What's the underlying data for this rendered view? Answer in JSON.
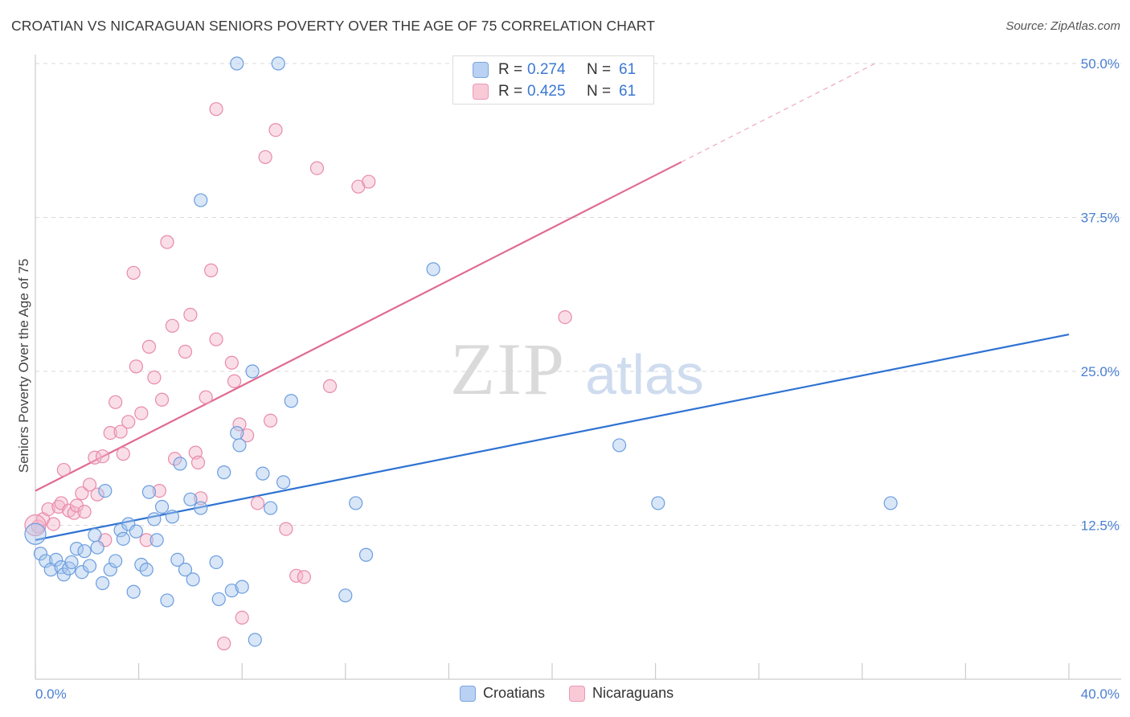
{
  "title": "CROATIAN VS NICARAGUAN SENIORS POVERTY OVER THE AGE OF 75 CORRELATION CHART",
  "source": "Source: ZipAtlas.com",
  "watermark": {
    "zip": "ZIP",
    "atlas": "atlas"
  },
  "legend": {
    "rows": [
      {
        "r_label": "R =",
        "r_value": "0.274",
        "n_label": "N =",
        "n_value": "61"
      },
      {
        "r_label": "R =",
        "r_value": "0.425",
        "n_label": "N =",
        "n_value": "61"
      }
    ]
  },
  "chart_data": {
    "type": "scatter",
    "title": "CROATIAN VS NICARAGUAN SENIORS POVERTY OVER THE AGE OF 75 CORRELATION CHART",
    "xlabel": "",
    "ylabel": "Seniors Poverty Over the Age of 75",
    "xlim": [
      0,
      40
    ],
    "ylim": [
      0,
      50
    ],
    "x_tick_labels": [
      "0.0%",
      "40.0%"
    ],
    "y_tick_labels": [
      "12.5%",
      "25.0%",
      "37.5%",
      "50.0%"
    ],
    "y_tick_values": [
      12.5,
      25.0,
      37.5,
      50.0
    ],
    "grid": true,
    "legend_position": "top-center",
    "colors": {
      "croatians": "#8bb4e8",
      "croatians_line": "#2e72d2",
      "nicaraguans": "#f0a3bd",
      "nicaraguans_line": "#e06b92"
    },
    "series": [
      {
        "name": "Croatians",
        "r": 0.274,
        "n": 61,
        "trend": {
          "x": [
            0,
            40
          ],
          "y": [
            11.3,
            28.0
          ]
        },
        "points": [
          [
            0.2,
            10.2
          ],
          [
            0.4,
            9.6
          ],
          [
            0.6,
            8.9
          ],
          [
            0.8,
            9.7
          ],
          [
            1.0,
            9.1
          ],
          [
            1.1,
            8.5
          ],
          [
            1.3,
            9.0
          ],
          [
            1.4,
            9.5
          ],
          [
            1.6,
            10.6
          ],
          [
            1.8,
            8.7
          ],
          [
            1.9,
            10.4
          ],
          [
            2.1,
            9.2
          ],
          [
            2.3,
            11.7
          ],
          [
            2.4,
            10.7
          ],
          [
            2.6,
            7.8
          ],
          [
            2.7,
            15.3
          ],
          [
            2.9,
            8.9
          ],
          [
            3.1,
            9.6
          ],
          [
            3.3,
            12.1
          ],
          [
            3.4,
            11.4
          ],
          [
            3.6,
            12.6
          ],
          [
            3.8,
            7.1
          ],
          [
            3.9,
            12.0
          ],
          [
            4.1,
            9.3
          ],
          [
            4.3,
            8.9
          ],
          [
            4.4,
            15.2
          ],
          [
            4.6,
            13.0
          ],
          [
            4.7,
            11.3
          ],
          [
            4.9,
            14.0
          ],
          [
            5.1,
            6.4
          ],
          [
            5.3,
            13.2
          ],
          [
            5.5,
            9.7
          ],
          [
            5.6,
            17.5
          ],
          [
            5.8,
            8.9
          ],
          [
            6.0,
            14.6
          ],
          [
            6.1,
            8.1
          ],
          [
            6.4,
            13.9
          ],
          [
            7.0,
            9.5
          ],
          [
            7.1,
            6.5
          ],
          [
            7.3,
            16.8
          ],
          [
            7.6,
            7.2
          ],
          [
            7.8,
            20.0
          ],
          [
            7.9,
            19.0
          ],
          [
            7.8,
            50.0
          ],
          [
            8.0,
            7.5
          ],
          [
            8.4,
            25.0
          ],
          [
            8.5,
            3.2
          ],
          [
            8.8,
            16.7
          ],
          [
            9.1,
            13.9
          ],
          [
            9.4,
            50.0
          ],
          [
            9.6,
            16.0
          ],
          [
            9.9,
            22.6
          ],
          [
            12.0,
            6.8
          ],
          [
            12.4,
            14.3
          ],
          [
            12.8,
            10.1
          ],
          [
            15.4,
            33.3
          ],
          [
            22.6,
            19.0
          ],
          [
            24.1,
            14.3
          ],
          [
            33.1,
            14.3
          ],
          [
            6.4,
            38.9
          ],
          [
            0.0,
            11.8
          ]
        ]
      },
      {
        "name": "Nicaraguans",
        "r": 0.425,
        "n": 61,
        "trend": {
          "x": [
            0,
            25.0
          ],
          "y": [
            15.3,
            42.0
          ],
          "dashed_extension": {
            "x": [
              25.0,
              40
            ],
            "y": [
              42.0,
              58.0
            ]
          }
        },
        "points": [
          [
            0.1,
            12.4
          ],
          [
            0.3,
            13.0
          ],
          [
            0.5,
            13.8
          ],
          [
            0.7,
            12.6
          ],
          [
            0.9,
            14.0
          ],
          [
            1.0,
            14.3
          ],
          [
            1.1,
            17.0
          ],
          [
            1.3,
            13.7
          ],
          [
            1.5,
            13.5
          ],
          [
            1.6,
            14.1
          ],
          [
            1.8,
            15.1
          ],
          [
            1.9,
            13.6
          ],
          [
            2.1,
            15.8
          ],
          [
            2.3,
            18.0
          ],
          [
            2.4,
            15.0
          ],
          [
            2.6,
            18.1
          ],
          [
            2.7,
            11.3
          ],
          [
            2.9,
            20.0
          ],
          [
            3.1,
            22.5
          ],
          [
            3.3,
            20.1
          ],
          [
            3.4,
            18.3
          ],
          [
            3.6,
            20.9
          ],
          [
            3.8,
            33.0
          ],
          [
            3.9,
            25.4
          ],
          [
            4.1,
            21.6
          ],
          [
            4.3,
            11.3
          ],
          [
            4.4,
            27.0
          ],
          [
            4.6,
            24.5
          ],
          [
            4.8,
            15.3
          ],
          [
            4.9,
            22.7
          ],
          [
            5.1,
            35.5
          ],
          [
            5.3,
            28.7
          ],
          [
            5.4,
            17.9
          ],
          [
            5.8,
            26.6
          ],
          [
            6.0,
            29.6
          ],
          [
            6.2,
            18.4
          ],
          [
            6.3,
            17.6
          ],
          [
            6.4,
            14.7
          ],
          [
            6.6,
            22.9
          ],
          [
            6.8,
            33.2
          ],
          [
            7.0,
            27.6
          ],
          [
            7.0,
            46.3
          ],
          [
            7.3,
            2.9
          ],
          [
            7.6,
            25.7
          ],
          [
            7.7,
            24.2
          ],
          [
            7.9,
            20.7
          ],
          [
            8.0,
            5.0
          ],
          [
            8.2,
            19.8
          ],
          [
            8.6,
            14.3
          ],
          [
            8.9,
            42.4
          ],
          [
            9.1,
            21.0
          ],
          [
            9.3,
            44.6
          ],
          [
            9.7,
            12.2
          ],
          [
            10.1,
            8.4
          ],
          [
            10.4,
            8.3
          ],
          [
            10.9,
            41.5
          ],
          [
            11.4,
            23.8
          ],
          [
            12.5,
            40.0
          ],
          [
            12.9,
            40.4
          ],
          [
            20.5,
            29.4
          ],
          [
            0.0,
            12.5
          ]
        ]
      }
    ]
  },
  "bottom_legend": [
    {
      "label": "Croatians"
    },
    {
      "label": "Nicaraguans"
    }
  ]
}
